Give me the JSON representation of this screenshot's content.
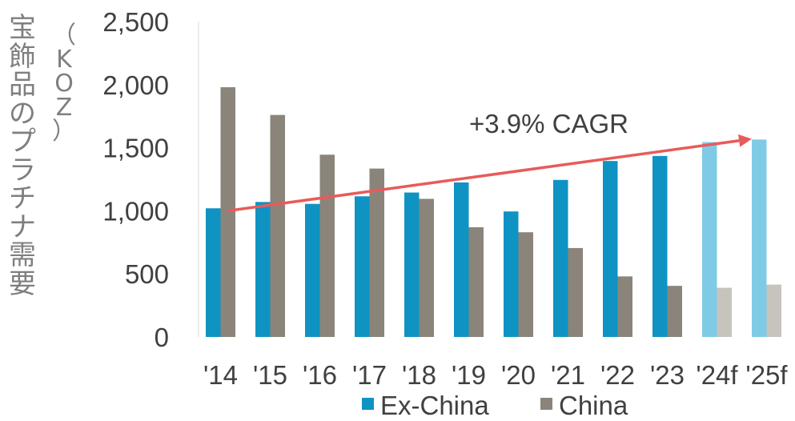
{
  "chart_data": {
    "type": "bar",
    "ylabel": "宝飾品のプラチナ需要",
    "yunit": "（KOZ）",
    "categories": [
      "'14",
      "'15",
      "'16",
      "'17",
      "'18",
      "'19",
      "'20",
      "'21",
      "'22",
      "'23",
      "'24f",
      "'25f"
    ],
    "series": [
      {
        "name": "Ex-China",
        "values": [
          1020,
          1070,
          1055,
          1115,
          1145,
          1225,
          995,
          1245,
          1395,
          1435,
          1545,
          1565
        ]
      },
      {
        "name": "China",
        "values": [
          1980,
          1760,
          1445,
          1335,
          1095,
          870,
          830,
          705,
          480,
          405,
          390,
          415
        ]
      }
    ],
    "forecast_categories": [
      "'24f",
      "'25f"
    ],
    "ylim": [
      0,
      2500
    ],
    "yticks": [
      0,
      500,
      1000,
      1500,
      2000,
      2500
    ],
    "ytick_labels": [
      "0",
      "500",
      "1,000",
      "1,500",
      "2,000",
      "2,500"
    ],
    "grid": false,
    "legend_position": "bottom",
    "annotation": {
      "text": "+3.9% CAGR",
      "arrow_from": {
        "category": "'14",
        "value": 1000
      },
      "arrow_to": {
        "category": "'25f",
        "value": 1570
      }
    },
    "colors": {
      "Ex-China": "#0f93c3",
      "China": "#8a847a",
      "Ex-China_forecast": "#7fcbe6",
      "China_forecast": "#c7c3bd",
      "arrow": "#e85b5b",
      "text": "#404040",
      "label": "#7f7f7f"
    }
  }
}
